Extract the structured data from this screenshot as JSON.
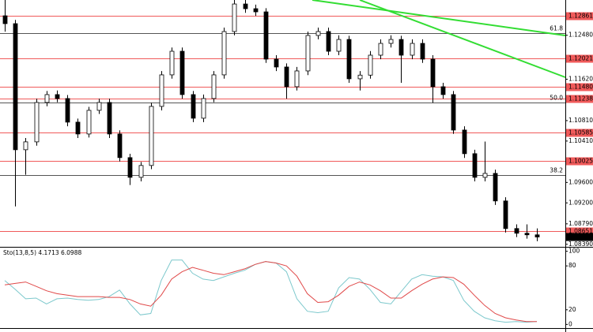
{
  "chart_data": [
    {
      "type": "candlestick",
      "open": [
        1.12861,
        1.12707,
        1.1024,
        1.10394,
        1.11165,
        1.11319,
        1.11242,
        1.1078,
        1.10548,
        1.11011,
        1.11165,
        1.10548,
        1.10086,
        1.097,
        1.09932,
        1.11088,
        1.11705,
        1.12167,
        1.11319,
        1.10857,
        1.11242,
        1.11705,
        1.12553,
        1.13092,
        1.13,
        1.12938,
        1.12013,
        1.11859,
        1.11473,
        1.11782,
        1.12476,
        1.12553,
        1.12167,
        1.12398,
        1.11628,
        1.117,
        1.1209,
        1.12321,
        1.12398,
        1.1209,
        1.12321,
        1.12013,
        1.11473,
        1.11319,
        1.10625,
        1.10163,
        1.097,
        1.09777,
        1.09238,
        1.08698,
        1.08606,
        1.08575
      ],
      "high": [
        1.1317,
        1.1278,
        1.1047,
        1.1124,
        1.1139,
        1.114,
        1.1131,
        1.1085,
        1.1108,
        1.1124,
        1.1124,
        1.1062,
        1.1016,
        1.1,
        1.1116,
        1.1178,
        1.1224,
        1.1224,
        1.1139,
        1.1132,
        1.1178,
        1.1263,
        1.1317,
        1.1317,
        1.1308,
        1.1301,
        1.1209,
        1.1193,
        1.1186,
        1.1255,
        1.1263,
        1.1263,
        1.1248,
        1.1247,
        1.1178,
        1.1217,
        1.124,
        1.1248,
        1.1247,
        1.124,
        1.124,
        1.1209,
        1.1155,
        1.1139,
        1.107,
        1.1024,
        1.104,
        1.0985,
        1.0931,
        1.0878,
        1.0878,
        1.087
      ],
      "low": [
        1.1255,
        1.0913,
        1.0975,
        1.1032,
        1.1109,
        1.1117,
        1.107,
        1.1047,
        1.1048,
        1.1094,
        1.1047,
        1.1001,
        1.0955,
        1.0962,
        1.0986,
        1.1101,
        1.1163,
        1.1124,
        1.1078,
        1.1078,
        1.1117,
        1.1163,
        1.1248,
        1.1292,
        1.1286,
        1.1194,
        1.1178,
        1.1124,
        1.114,
        1.117,
        1.124,
        1.1209,
        1.1209,
        1.1155,
        1.114,
        1.1163,
        1.1201,
        1.1224,
        1.1155,
        1.1201,
        1.1194,
        1.1116,
        1.1124,
        1.1055,
        1.1008,
        1.0962,
        1.0962,
        1.0916,
        1.0862,
        1.0853,
        1.085,
        1.0845
      ],
      "close": [
        1.12707,
        1.1024,
        1.10394,
        1.11165,
        1.11319,
        1.11242,
        1.1078,
        1.10548,
        1.11011,
        1.11165,
        1.10548,
        1.10086,
        1.097,
        1.09932,
        1.11088,
        1.11705,
        1.12167,
        1.11319,
        1.10857,
        1.11242,
        1.11705,
        1.12553,
        1.13092,
        1.13,
        1.12938,
        1.12013,
        1.11859,
        1.11473,
        1.11782,
        1.12476,
        1.12553,
        1.12167,
        1.12398,
        1.11628,
        1.117,
        1.1209,
        1.12321,
        1.12398,
        1.1209,
        1.12321,
        1.12013,
        1.11473,
        1.11319,
        1.10625,
        1.10163,
        1.097,
        1.09777,
        1.09238,
        1.08698,
        1.08606,
        1.08575,
        1.08532
      ],
      "up_color": "#ffffff",
      "down_color": "#000000",
      "ylim": [
        1.0834,
        1.1317
      ],
      "yticks": [
        {
          "value": 1.1248,
          "label": "1.12480"
        },
        {
          "value": 1.1162,
          "label": "1.11620"
        },
        {
          "value": 1.1081,
          "label": "1.10810"
        },
        {
          "value": 1.1041,
          "label": "1.10410"
        },
        {
          "value": 1.096,
          "label": "1.09600"
        },
        {
          "value": 1.092,
          "label": "1.09200"
        },
        {
          "value": 1.0879,
          "label": "1.08790"
        },
        {
          "value": 1.0839,
          "label": "1.08390"
        }
      ],
      "levels": [
        1.12861,
        1.12021,
        {
          "value": 1.1148,
          "label": "1.11480"
        },
        1.11238,
        1.10585,
        1.10025,
        1.08651
      ],
      "level_color": "#f05a5a",
      "fib_levels": [
        {
          "label": "61.8",
          "price": 1.12522
        },
        {
          "label": "50.0",
          "price": 1.11165
        },
        {
          "label": "38.2",
          "price": 1.09747
        }
      ],
      "last_price": 1.08532
    },
    {
      "type": "line",
      "title": "Sto(13,8,5) 4.1713 6.0988",
      "series": [
        {
          "color": "#7cc8cc",
          "values": [
            60,
            48,
            35,
            36,
            28,
            35,
            36,
            34,
            33,
            34,
            38,
            47,
            28,
            13,
            15,
            60,
            88,
            88,
            70,
            62,
            60,
            65,
            70,
            74,
            82,
            86,
            84,
            72,
            35,
            18,
            16,
            18,
            50,
            64,
            62,
            48,
            30,
            28,
            45,
            62,
            68,
            66,
            65,
            60,
            33,
            18,
            9,
            5,
            3,
            4,
            3,
            4
          ]
        },
        {
          "color": "#e04848",
          "values": [
            54,
            56,
            58,
            52,
            46,
            42,
            40,
            38,
            38,
            38,
            37,
            37,
            34,
            28,
            25,
            40,
            62,
            72,
            78,
            74,
            70,
            68,
            72,
            76,
            82,
            86,
            84,
            80,
            66,
            42,
            30,
            31,
            40,
            52,
            58,
            54,
            46,
            36,
            36,
            46,
            55,
            62,
            65,
            64,
            55,
            40,
            26,
            15,
            9,
            6,
            4,
            4
          ]
        }
      ],
      "ylim": [
        -5,
        105
      ],
      "yticks": [
        0,
        20,
        80,
        100
      ]
    }
  ]
}
